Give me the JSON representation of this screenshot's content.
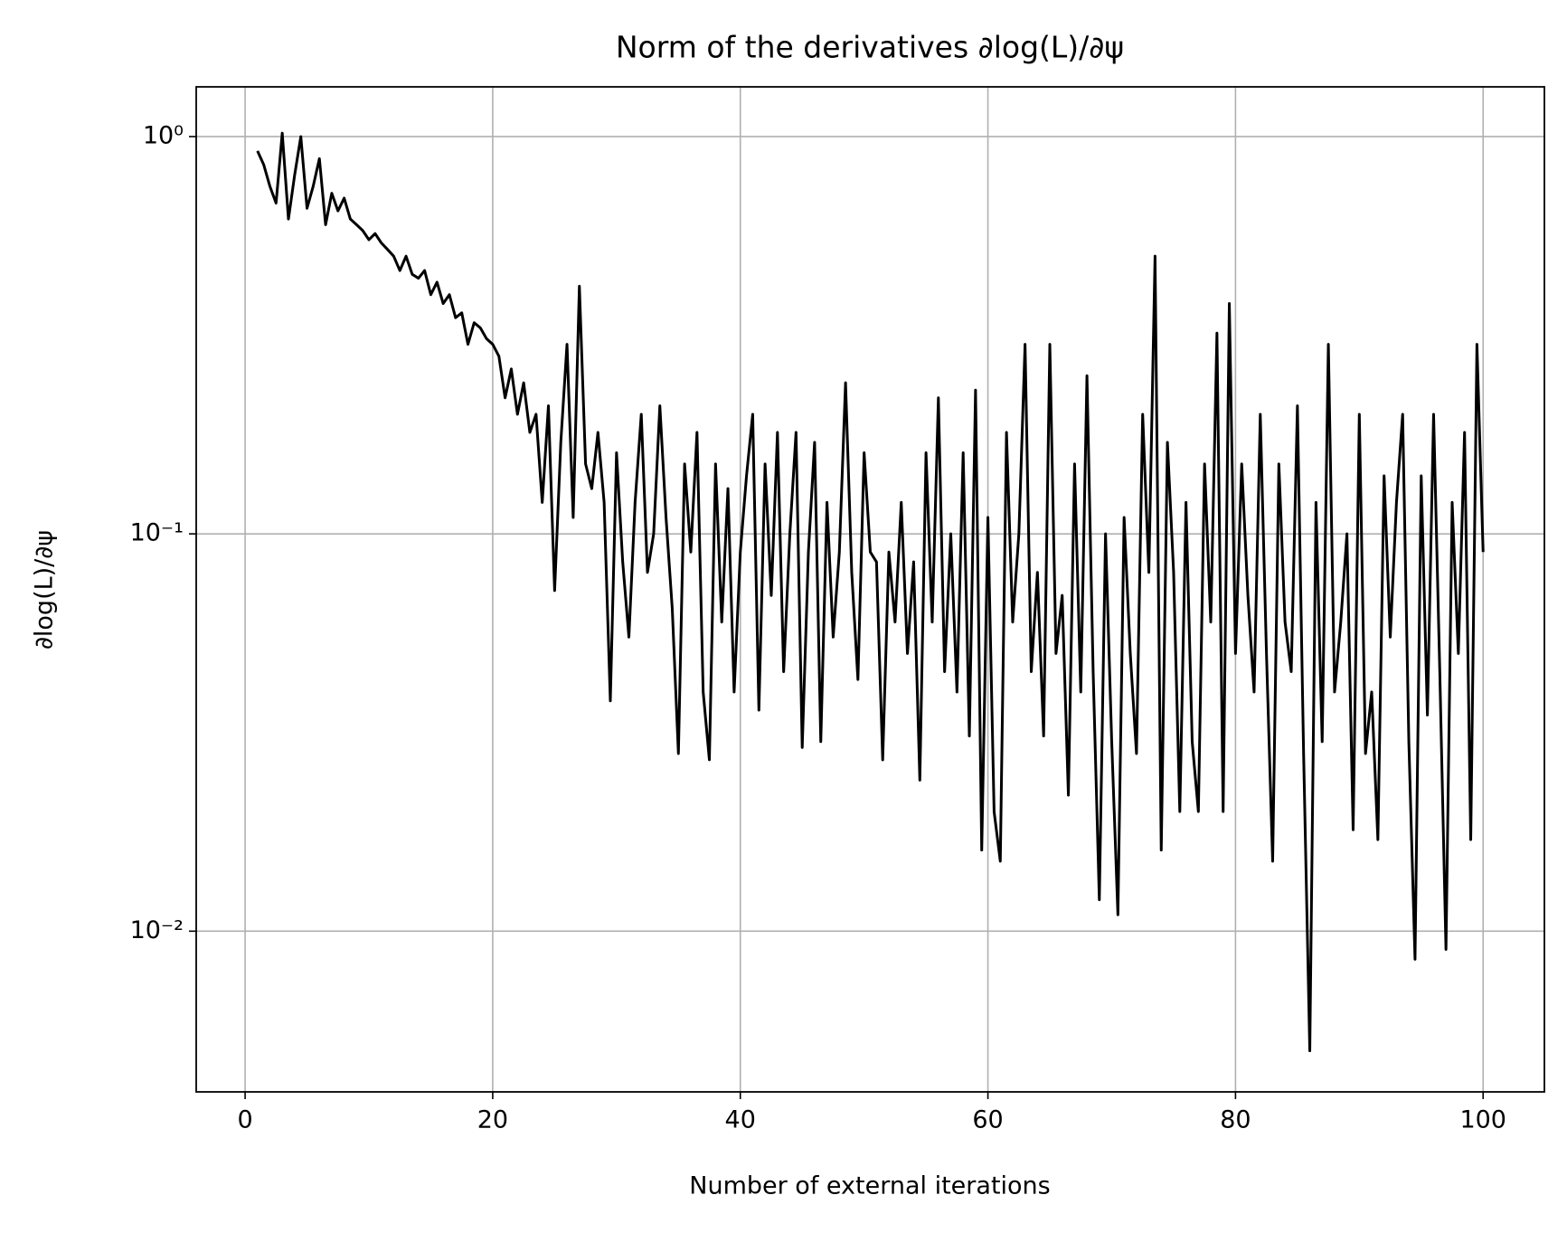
{
  "chart_data": {
    "type": "line",
    "title": "Norm of the derivatives ∂log(L)/∂ψ",
    "x_label": "Number of external iterations",
    "y_label": "∂log(L)/∂ψ",
    "log_y": true,
    "grid": true,
    "xlim": [
      -3.95,
      104.95
    ],
    "xticks": [
      0,
      20,
      40,
      60,
      80,
      100
    ],
    "ylim": [
      0.00394,
      1.334
    ],
    "yticks": [
      {
        "value": 0.01,
        "label": "10⁻²"
      },
      {
        "value": 0.1,
        "label": "10⁻¹"
      },
      {
        "value": 1,
        "label": "10⁰"
      }
    ],
    "x": [
      1,
      1.5,
      2,
      2.5,
      3,
      3.5,
      4,
      4.5,
      5,
      5.5,
      6,
      6.5,
      7,
      7.5,
      8,
      8.5,
      9,
      9.5,
      10,
      10.5,
      11,
      11.5,
      12,
      12.5,
      13,
      13.5,
      14,
      14.5,
      15,
      15.5,
      16,
      16.5,
      17,
      17.5,
      18,
      18.5,
      19,
      19.5,
      20,
      20.5,
      21,
      21.5,
      22,
      22.5,
      23,
      23.5,
      24,
      24.5,
      25,
      25.5,
      26,
      26.5,
      27,
      27.5,
      28,
      28.5,
      29,
      29.5,
      30,
      30.5,
      31,
      31.5,
      32,
      32.5,
      33,
      33.5,
      34,
      34.5,
      35,
      35.5,
      36,
      36.5,
      37,
      37.5,
      38,
      38.5,
      39,
      39.5,
      40,
      40.5,
      41,
      41.5,
      42,
      42.5,
      43,
      43.5,
      44,
      44.5,
      45,
      45.5,
      46,
      46.5,
      47,
      47.5,
      48,
      48.5,
      49,
      49.5,
      50,
      50.5,
      51,
      51.5,
      52,
      52.5,
      53,
      53.5,
      54,
      54.5,
      55,
      55.5,
      56,
      56.5,
      57,
      57.5,
      58,
      58.5,
      59,
      59.5,
      60,
      60.5,
      61,
      61.5,
      62,
      62.5,
      63,
      63.5,
      64,
      64.5,
      65,
      65.5,
      66,
      66.5,
      67,
      67.5,
      68,
      68.5,
      69,
      69.5,
      70,
      70.5,
      71,
      71.5,
      72,
      72.5,
      73,
      73.5,
      74,
      74.5,
      75,
      75.5,
      76,
      76.5,
      77,
      77.5,
      78,
      78.5,
      79,
      79.5,
      80,
      80.5,
      81,
      81.5,
      82,
      82.5,
      83,
      83.5,
      84,
      84.5,
      85,
      85.5,
      86,
      86.5,
      87,
      87.5,
      88,
      88.5,
      89,
      89.5,
      90,
      90.5,
      91,
      91.5,
      92,
      92.5,
      93,
      93.5,
      94,
      94.5,
      95,
      95.5,
      96,
      96.5,
      97,
      97.5,
      98,
      98.5,
      99,
      99.5,
      100
    ],
    "series": [
      {
        "color": "#000000",
        "values": [
          0.92,
          0.85,
          0.75,
          0.68,
          1.02,
          0.62,
          0.8,
          1.0,
          0.66,
          0.75,
          0.88,
          0.6,
          0.72,
          0.65,
          0.7,
          0.62,
          0.6,
          0.58,
          0.55,
          0.57,
          0.54,
          0.52,
          0.5,
          0.46,
          0.5,
          0.45,
          0.44,
          0.46,
          0.4,
          0.43,
          0.38,
          0.4,
          0.35,
          0.36,
          0.3,
          0.34,
          0.33,
          0.31,
          0.3,
          0.28,
          0.22,
          0.26,
          0.2,
          0.24,
          0.18,
          0.2,
          0.12,
          0.21,
          0.072,
          0.17,
          0.3,
          0.11,
          0.42,
          0.15,
          0.13,
          0.18,
          0.12,
          0.038,
          0.16,
          0.085,
          0.055,
          0.12,
          0.2,
          0.08,
          0.1,
          0.21,
          0.11,
          0.065,
          0.028,
          0.15,
          0.09,
          0.18,
          0.04,
          0.027,
          0.15,
          0.06,
          0.13,
          0.04,
          0.09,
          0.14,
          0.2,
          0.036,
          0.15,
          0.07,
          0.18,
          0.045,
          0.1,
          0.18,
          0.029,
          0.09,
          0.17,
          0.03,
          0.12,
          0.055,
          0.09,
          0.24,
          0.08,
          0.043,
          0.16,
          0.09,
          0.085,
          0.027,
          0.09,
          0.06,
          0.12,
          0.05,
          0.085,
          0.024,
          0.16,
          0.06,
          0.22,
          0.045,
          0.1,
          0.04,
          0.16,
          0.031,
          0.23,
          0.016,
          0.11,
          0.02,
          0.015,
          0.18,
          0.06,
          0.1,
          0.3,
          0.045,
          0.08,
          0.031,
          0.3,
          0.05,
          0.07,
          0.022,
          0.15,
          0.04,
          0.25,
          0.045,
          0.012,
          0.1,
          0.03,
          0.011,
          0.11,
          0.05,
          0.028,
          0.2,
          0.08,
          0.5,
          0.016,
          0.17,
          0.08,
          0.02,
          0.12,
          0.03,
          0.02,
          0.15,
          0.06,
          0.32,
          0.02,
          0.38,
          0.05,
          0.15,
          0.07,
          0.04,
          0.2,
          0.05,
          0.015,
          0.15,
          0.06,
          0.045,
          0.21,
          0.028,
          0.005,
          0.12,
          0.03,
          0.3,
          0.04,
          0.06,
          0.1,
          0.018,
          0.2,
          0.028,
          0.04,
          0.017,
          0.14,
          0.055,
          0.12,
          0.2,
          0.03,
          0.0085,
          0.14,
          0.035,
          0.2,
          0.045,
          0.009,
          0.12,
          0.05,
          0.18,
          0.017,
          0.3,
          0.09
        ]
      }
    ]
  }
}
